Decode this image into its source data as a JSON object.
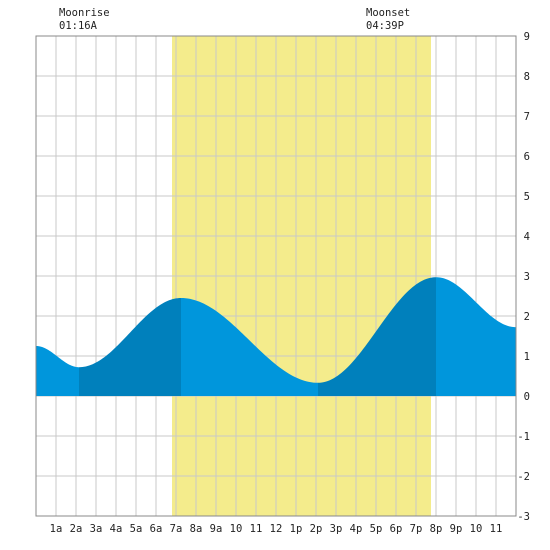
{
  "chart_data": {
    "type": "area",
    "title": "",
    "xlabel": "",
    "ylabel": "",
    "xlim": [
      0,
      24
    ],
    "ylim": [
      -3,
      9
    ],
    "y_ticks": [
      "-3",
      "-2",
      "-1",
      "0",
      "1",
      "2",
      "3",
      "4",
      "5",
      "6",
      "7",
      "8",
      "9"
    ],
    "x_ticks": [
      {
        "hour": 1,
        "label": "1a"
      },
      {
        "hour": 2,
        "label": "2a"
      },
      {
        "hour": 3,
        "label": "3a"
      },
      {
        "hour": 4,
        "label": "4a"
      },
      {
        "hour": 5,
        "label": "5a"
      },
      {
        "hour": 6,
        "label": "6a"
      },
      {
        "hour": 7,
        "label": "7a"
      },
      {
        "hour": 8,
        "label": "8a"
      },
      {
        "hour": 9,
        "label": "9a"
      },
      {
        "hour": 10,
        "label": "10"
      },
      {
        "hour": 11,
        "label": "11"
      },
      {
        "hour": 12,
        "label": "12"
      },
      {
        "hour": 13,
        "label": "1p"
      },
      {
        "hour": 14,
        "label": "2p"
      },
      {
        "hour": 15,
        "label": "3p"
      },
      {
        "hour": 16,
        "label": "4p"
      },
      {
        "hour": 17,
        "label": "5p"
      },
      {
        "hour": 18,
        "label": "6p"
      },
      {
        "hour": 19,
        "label": "7p"
      },
      {
        "hour": 20,
        "label": "8p"
      },
      {
        "hour": 21,
        "label": "9p"
      },
      {
        "hour": 22,
        "label": "10"
      },
      {
        "hour": 23,
        "label": "11"
      }
    ],
    "grid": true,
    "daylight": {
      "start": 6.8,
      "end": 19.75
    },
    "tide_extremes": [
      {
        "hour": 2.15,
        "height": 0.72,
        "kind": "low"
      },
      {
        "hour": 7.25,
        "height": 2.45,
        "kind": "high"
      },
      {
        "hour": 14.1,
        "height": 0.33,
        "kind": "low"
      },
      {
        "hour": 20.0,
        "height": 2.97,
        "kind": "high"
      }
    ],
    "tide_start_height": 1.25,
    "tide_end_height": 1.72,
    "colors": {
      "tide_light": "#0096dc",
      "tide_dark": "#0080bc",
      "daylight": "#f4ec8c",
      "grid": "#c8c8c8",
      "border": "#888888"
    }
  },
  "moon": {
    "rise_title": "Moonrise",
    "rise_time": "01:16A",
    "set_title": "Moonset",
    "set_time": "04:39P"
  }
}
